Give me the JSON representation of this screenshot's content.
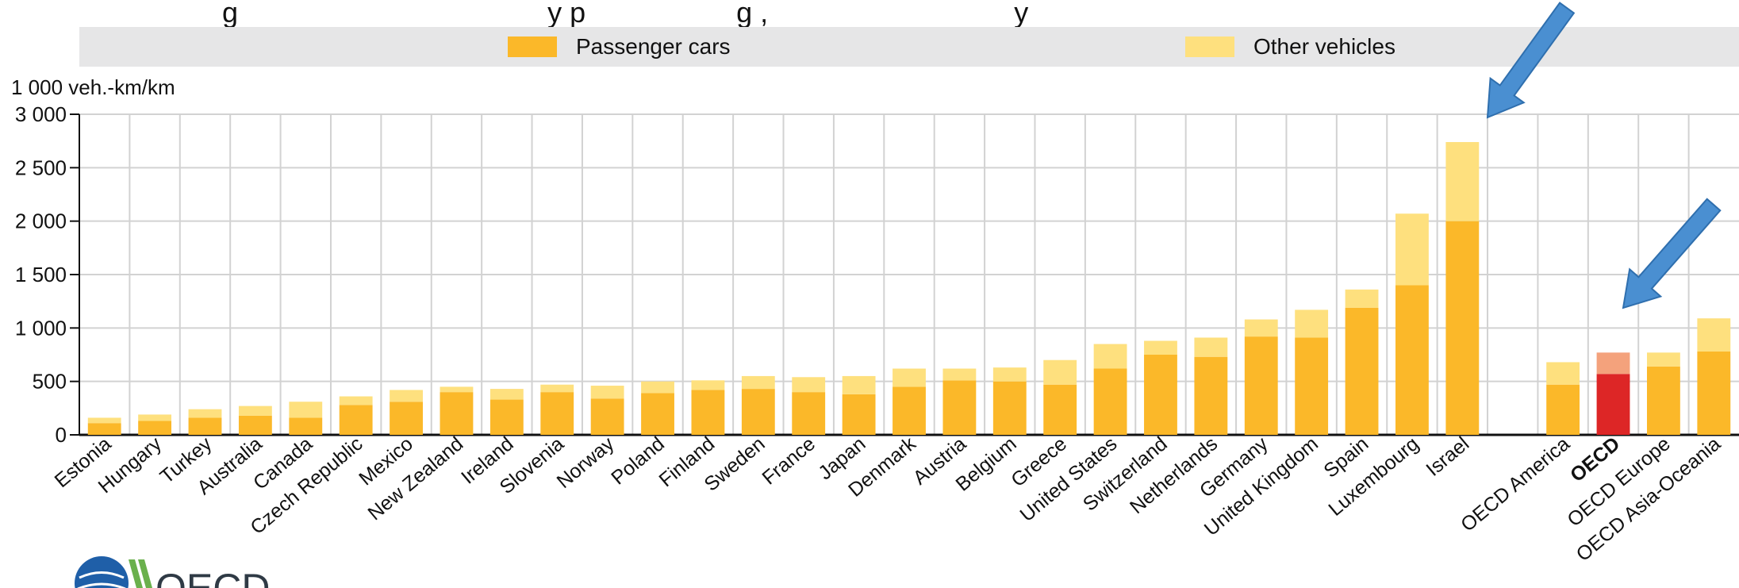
{
  "title_fragment": "g                                       y p                   g ,                               y",
  "unit_label": "1 000 veh.-km/km",
  "colors": {
    "passenger": "#FBB829",
    "other": "#FEE07E",
    "passenger_highlight": "#DD2626",
    "other_highlight": "#F4A27C",
    "arrow": "#4A8FD1",
    "legend_band": "#E6E6E7"
  },
  "logo": {
    "text": "OECD"
  },
  "chart_data": {
    "type": "bar",
    "stacked": true,
    "ylim": [
      0,
      3000
    ],
    "yticks": [
      0,
      500,
      1000,
      1500,
      2000,
      2500,
      3000
    ],
    "ytick_labels": [
      "0",
      "500",
      "1 000",
      "1 500",
      "2 000",
      "2 500",
      "3 000"
    ],
    "grid": true,
    "legend_position": "top",
    "series": [
      {
        "name": "Passenger cars",
        "values": [
          110,
          130,
          160,
          180,
          160,
          280,
          310,
          400,
          330,
          400,
          340,
          390,
          420,
          430,
          400,
          380,
          450,
          510,
          500,
          470,
          620,
          750,
          730,
          920,
          910,
          1190,
          1400,
          2000,
          null,
          470,
          570,
          640,
          780
        ]
      },
      {
        "name": "Other vehicles",
        "values": [
          50,
          60,
          80,
          90,
          150,
          80,
          110,
          50,
          100,
          70,
          120,
          110,
          90,
          120,
          140,
          170,
          170,
          110,
          130,
          230,
          230,
          130,
          180,
          160,
          260,
          170,
          670,
          740,
          null,
          210,
          200,
          130,
          310
        ]
      }
    ],
    "categories": [
      "Estonia",
      "Hungary",
      "Turkey",
      "Australia",
      "Canada",
      "Czech Republic",
      "Mexico",
      "New Zealand",
      "Ireland",
      "Slovenia",
      "Norway",
      "Poland",
      "Finland",
      "Sweden",
      "France",
      "Japan",
      "Denmark",
      "Austria",
      "Belgium",
      "Greece",
      "United States",
      "Switzerland",
      "Netherlands",
      "Germany",
      "United Kingdom",
      "Spain",
      "Luxembourg",
      "Israel",
      "",
      "OECD America",
      "OECD",
      "OECD Europe",
      "OECD Asia-Oceania"
    ],
    "highlight_index": 30,
    "bold_categories": [
      "OECD"
    ],
    "annotations": [
      {
        "type": "arrow",
        "target": "Israel"
      },
      {
        "type": "arrow",
        "target": "OECD"
      }
    ]
  }
}
